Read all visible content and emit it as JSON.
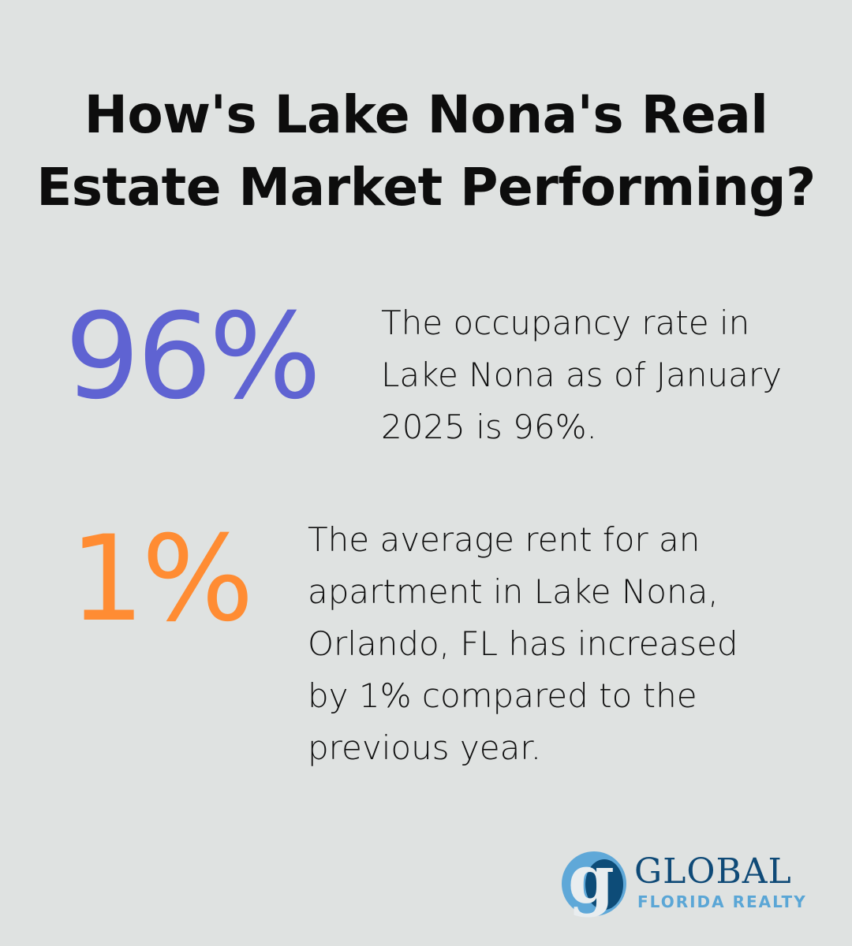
{
  "header": {
    "title_line1": "How's Lake Nona's Real",
    "title_line2": "Estate Market Performing?"
  },
  "stats": [
    {
      "value": "96%",
      "color": "#5f63d2",
      "line1": "The occupancy rate in",
      "line2": "Lake Nona as of January",
      "line3": "2025 is 96%."
    },
    {
      "value": "1%",
      "color": "#ff8c33",
      "line1": "The average rent for an",
      "line2": "apartment in Lake Nona,",
      "line3": "Orlando, FL has increased",
      "line4": "by 1% compared to the",
      "line5": "previous year."
    }
  ],
  "logo": {
    "letter": "g",
    "name": "GLOBAL",
    "tagline": "FLORIDA REALTY",
    "colors": {
      "dark": "#0f4a77",
      "light": "#5aa6d6"
    }
  }
}
